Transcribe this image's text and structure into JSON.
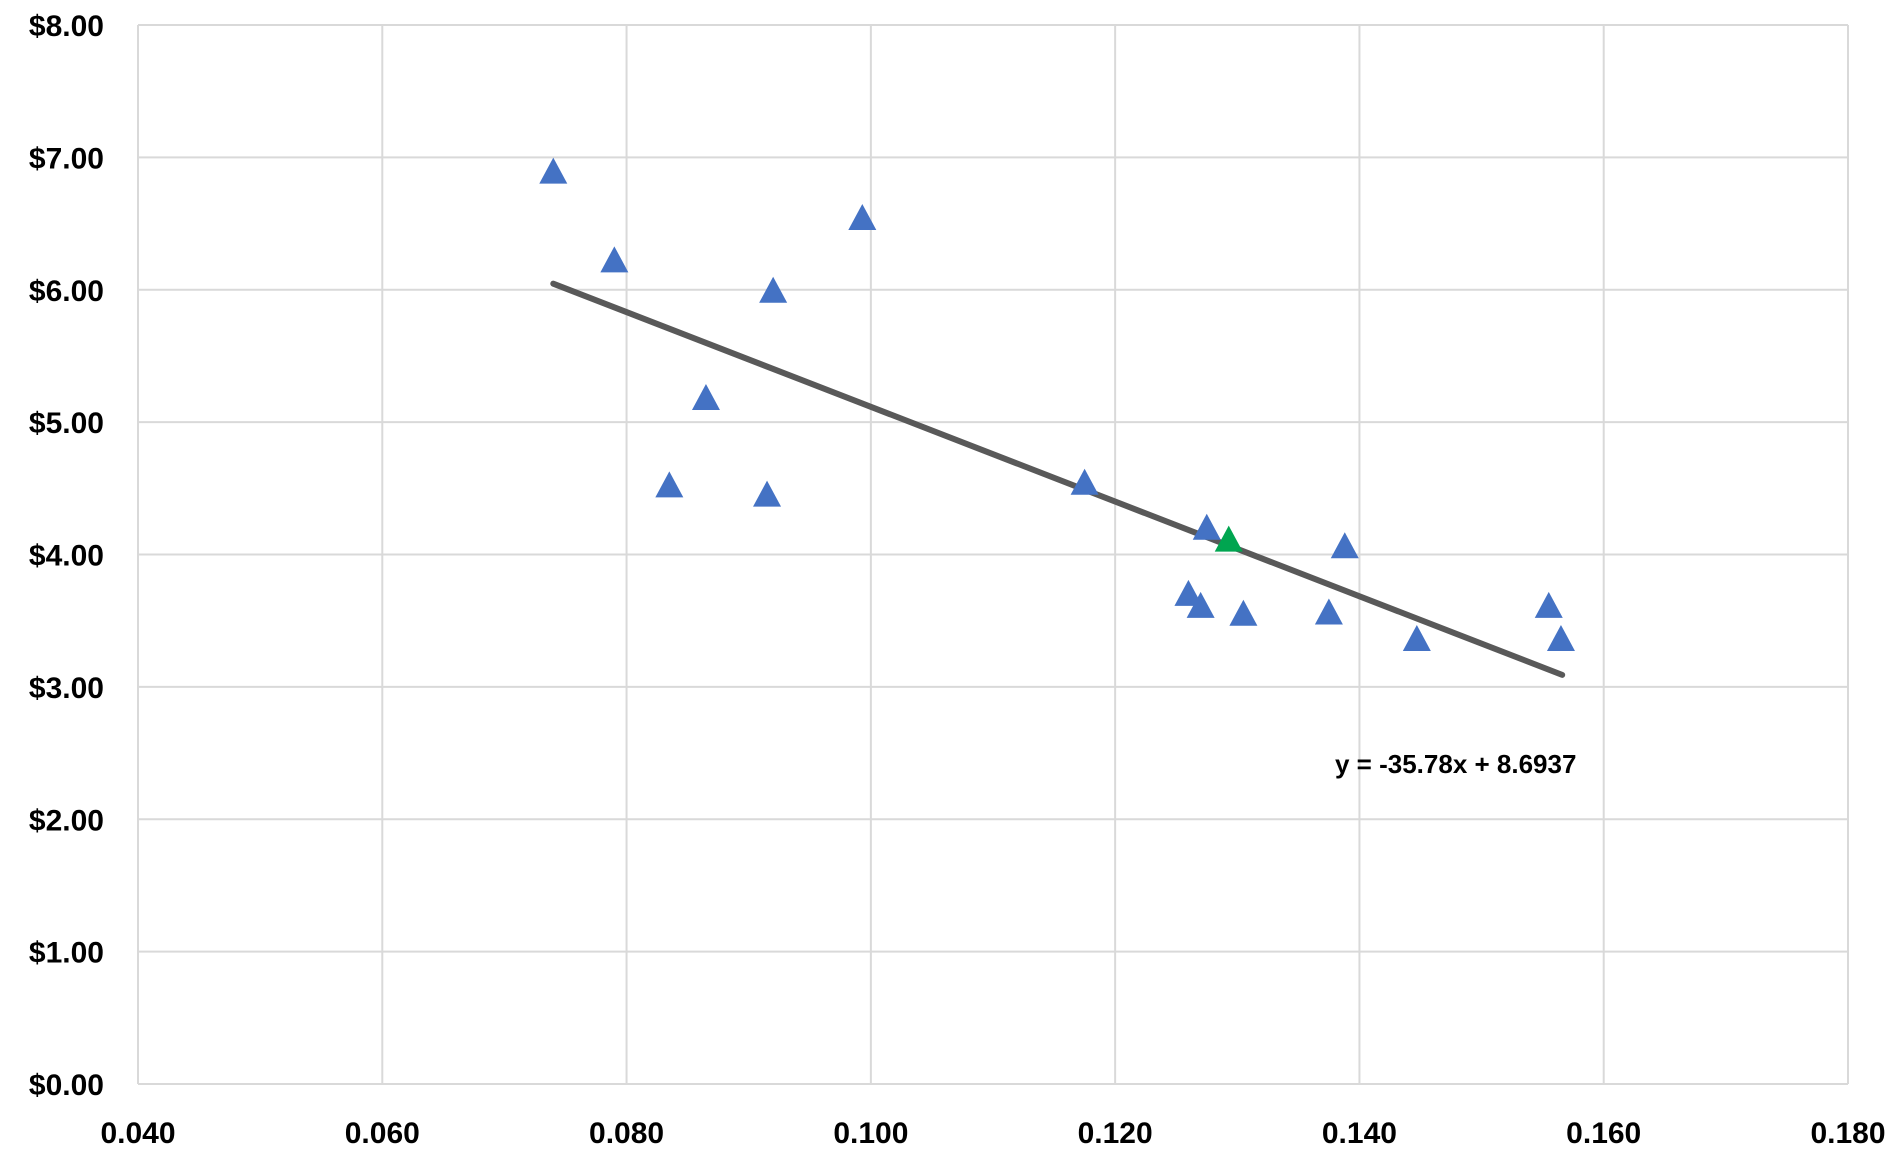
{
  "chart_data": {
    "type": "scatter",
    "title": "",
    "xlabel": "",
    "ylabel": "",
    "xlim": [
      0.04,
      0.18
    ],
    "ylim": [
      0,
      8
    ],
    "x_ticks": [
      0.04,
      0.06,
      0.08,
      0.1,
      0.12,
      0.14,
      0.16,
      0.18
    ],
    "y_ticks": [
      0,
      1,
      2,
      3,
      4,
      5,
      6,
      7,
      8
    ],
    "x_tick_labels": [
      "0.040",
      "0.060",
      "0.080",
      "0.100",
      "0.120",
      "0.140",
      "0.160",
      "0.180"
    ],
    "y_tick_labels": [
      "$0.00",
      "$1.00",
      "$2.00",
      "$3.00",
      "$4.00",
      "$5.00",
      "$6.00",
      "$7.00",
      "$8.00"
    ],
    "grid": true,
    "marker": "triangle",
    "series": [
      {
        "color": "#4472C4",
        "points": [
          {
            "x": 0.074,
            "y": 6.88
          },
          {
            "x": 0.079,
            "y": 6.21
          },
          {
            "x": 0.0835,
            "y": 4.51
          },
          {
            "x": 0.0865,
            "y": 5.17
          },
          {
            "x": 0.0915,
            "y": 4.44
          },
          {
            "x": 0.092,
            "y": 5.98
          },
          {
            "x": 0.0993,
            "y": 6.53
          },
          {
            "x": 0.1175,
            "y": 4.53
          },
          {
            "x": 0.126,
            "y": 3.69
          },
          {
            "x": 0.127,
            "y": 3.6
          },
          {
            "x": 0.1275,
            "y": 4.19
          },
          {
            "x": 0.1305,
            "y": 3.54
          },
          {
            "x": 0.1375,
            "y": 3.55
          },
          {
            "x": 0.1388,
            "y": 4.05
          },
          {
            "x": 0.1447,
            "y": 3.35
          },
          {
            "x": 0.1555,
            "y": 3.6
          },
          {
            "x": 0.1565,
            "y": 3.35
          }
        ]
      },
      {
        "color": "#00A550",
        "points": [
          {
            "x": 0.1293,
            "y": 4.1
          }
        ]
      }
    ],
    "trendline": {
      "color": "#595959",
      "x_start": 0.074,
      "x_end": 0.1566,
      "slope": -35.78,
      "intercept": 8.6937,
      "equation_label": "y = -35.78x + 8.6937"
    }
  }
}
